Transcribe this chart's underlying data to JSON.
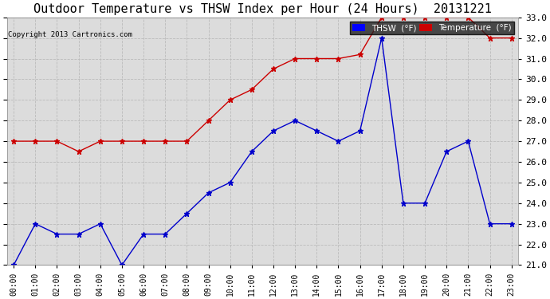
{
  "title": "Outdoor Temperature vs THSW Index per Hour (24 Hours)  20131221",
  "copyright": "Copyright 2013 Cartronics.com",
  "hours": [
    "00:00",
    "01:00",
    "02:00",
    "03:00",
    "04:00",
    "05:00",
    "06:00",
    "07:00",
    "08:00",
    "09:00",
    "10:00",
    "11:00",
    "12:00",
    "13:00",
    "14:00",
    "15:00",
    "16:00",
    "17:00",
    "18:00",
    "19:00",
    "20:00",
    "21:00",
    "22:00",
    "23:00"
  ],
  "temperature": [
    27.0,
    27.0,
    27.0,
    26.5,
    27.0,
    27.0,
    27.0,
    27.0,
    27.0,
    28.0,
    29.0,
    29.5,
    30.5,
    31.0,
    31.0,
    31.0,
    31.2,
    33.0,
    33.0,
    33.0,
    33.0,
    33.0,
    32.0,
    32.0
  ],
  "thsw": [
    21.0,
    23.0,
    22.5,
    22.5,
    23.0,
    21.0,
    22.5,
    22.5,
    23.5,
    24.5,
    25.0,
    26.5,
    27.5,
    28.0,
    27.5,
    27.0,
    27.5,
    32.0,
    24.0,
    24.0,
    26.5,
    27.0,
    23.0,
    23.0
  ],
  "ylim": [
    21.0,
    33.0
  ],
  "yticks": [
    21.0,
    22.0,
    23.0,
    24.0,
    25.0,
    26.0,
    27.0,
    28.0,
    29.0,
    30.0,
    31.0,
    32.0,
    33.0
  ],
  "temp_color": "#cc0000",
  "thsw_color": "#0000cc",
  "bg_color": "#ffffff",
  "grid_color": "#bbbbbb",
  "title_fontsize": 11,
  "legend_thsw_bg": "#0000ff",
  "legend_temp_bg": "#cc0000",
  "plot_bg": "#dcdcdc"
}
